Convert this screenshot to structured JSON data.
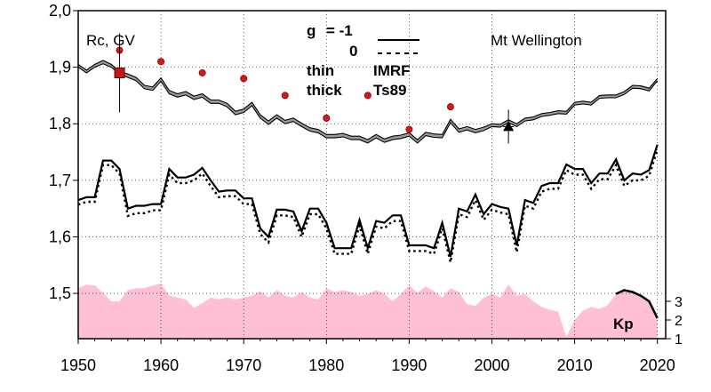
{
  "chart_data": {
    "type": "line",
    "ylabel": "Rc, GV",
    "station": "Mt Wellington",
    "legend": {
      "g_label": "g",
      "g_minus1": "= -1",
      "g_zero": "0",
      "thin_label": "thin",
      "thick_label": "thick",
      "model_thin": "IMRF",
      "model_thick": "Ts89"
    },
    "x_ticks": [
      "1950",
      "1960",
      "1970",
      "1980",
      "1990",
      "2000",
      "2010",
      "2020"
    ],
    "y_ticks": [
      "1,5",
      "1,6",
      "1,7",
      "1,8",
      "1,9",
      "2,0"
    ],
    "kp_label": "Kp",
    "kp_ticks": [
      "1",
      "2",
      "3"
    ],
    "xlim": [
      1950,
      2021
    ],
    "ylim": [
      1.42,
      2.0
    ],
    "kp_lim": [
      1,
      3.4
    ],
    "series": [
      {
        "name": "IMRF g=-1",
        "style": "thin-solid",
        "x": [
          1950,
          1951,
          1952,
          1953,
          1954,
          1955,
          1956,
          1957,
          1958,
          1959,
          1960,
          1961,
          1962,
          1963,
          1964,
          1965,
          1966,
          1967,
          1968,
          1969,
          1970,
          1971,
          1972,
          1973,
          1974,
          1975,
          1976,
          1977,
          1978,
          1979,
          1980,
          1981,
          1982,
          1983,
          1984,
          1985,
          1986,
          1987,
          1988,
          1989,
          1990,
          1991,
          1992,
          1993,
          1994,
          1995,
          1996,
          1997,
          1998,
          1999,
          2000,
          2001,
          2002,
          2003,
          2004,
          2005,
          2006,
          2007,
          2008,
          2009,
          2010,
          2011,
          2012,
          2013,
          2014,
          2015,
          2016,
          2017,
          2018,
          2019,
          2020
        ],
        "values": [
          1.905,
          1.895,
          1.905,
          1.912,
          1.905,
          1.893,
          1.888,
          1.882,
          1.868,
          1.865,
          1.881,
          1.859,
          1.853,
          1.857,
          1.849,
          1.853,
          1.842,
          1.842,
          1.836,
          1.822,
          1.826,
          1.838,
          1.816,
          1.805,
          1.816,
          1.806,
          1.81,
          1.801,
          1.793,
          1.79,
          1.781,
          1.781,
          1.783,
          1.778,
          1.778,
          1.772,
          1.781,
          1.773,
          1.778,
          1.78,
          1.784,
          1.772,
          1.785,
          1.782,
          1.781,
          1.808,
          1.791,
          1.795,
          1.79,
          1.794,
          1.8,
          1.799,
          1.807,
          1.8,
          1.81,
          1.812,
          1.818,
          1.82,
          1.823,
          1.822,
          1.838,
          1.84,
          1.838,
          1.85,
          1.851,
          1.851,
          1.857,
          1.868,
          1.867,
          1.863,
          1.88
        ]
      },
      {
        "name": "IMRF g=0",
        "style": "thin-solid",
        "x": [
          1950,
          1951,
          1952,
          1953,
          1954,
          1955,
          1956,
          1957,
          1958,
          1959,
          1960,
          1961,
          1962,
          1963,
          1964,
          1965,
          1966,
          1967,
          1968,
          1969,
          1970,
          1971,
          1972,
          1973,
          1974,
          1975,
          1976,
          1977,
          1978,
          1979,
          1980,
          1981,
          1982,
          1983,
          1984,
          1985,
          1986,
          1987,
          1988,
          1989,
          1990,
          1991,
          1992,
          1993,
          1994,
          1995,
          1996,
          1997,
          1998,
          1999,
          2000,
          2001,
          2002,
          2003,
          2004,
          2005,
          2006,
          2007,
          2008,
          2009,
          2010,
          2011,
          2012,
          2013,
          2014,
          2015,
          2016,
          2017,
          2018,
          2019,
          2020
        ],
        "values": [
          1.9,
          1.89,
          1.9,
          1.906,
          1.9,
          1.888,
          1.882,
          1.876,
          1.862,
          1.859,
          1.875,
          1.853,
          1.847,
          1.851,
          1.843,
          1.847,
          1.836,
          1.836,
          1.83,
          1.816,
          1.82,
          1.832,
          1.81,
          1.799,
          1.81,
          1.8,
          1.804,
          1.795,
          1.787,
          1.784,
          1.775,
          1.775,
          1.777,
          1.772,
          1.772,
          1.766,
          1.775,
          1.767,
          1.772,
          1.774,
          1.778,
          1.766,
          1.779,
          1.776,
          1.775,
          1.802,
          1.785,
          1.789,
          1.784,
          1.788,
          1.795,
          1.794,
          1.802,
          1.795,
          1.805,
          1.807,
          1.813,
          1.815,
          1.818,
          1.817,
          1.833,
          1.835,
          1.833,
          1.845,
          1.846,
          1.846,
          1.852,
          1.863,
          1.862,
          1.858,
          1.876
        ]
      },
      {
        "name": "Ts89 g=-1",
        "style": "thick-solid",
        "x": [
          1950,
          1951,
          1952,
          1953,
          1954,
          1955,
          1956,
          1957,
          1958,
          1959,
          1960,
          1961,
          1962,
          1963,
          1964,
          1965,
          1966,
          1967,
          1968,
          1969,
          1970,
          1971,
          1972,
          1973,
          1974,
          1975,
          1976,
          1977,
          1978,
          1979,
          1980,
          1981,
          1982,
          1983,
          1984,
          1985,
          1986,
          1987,
          1988,
          1989,
          1990,
          1991,
          1992,
          1993,
          1994,
          1995,
          1996,
          1997,
          1998,
          1999,
          2000,
          2001,
          2002,
          2003,
          2004,
          2005,
          2006,
          2007,
          2008,
          2009,
          2010,
          2011,
          2012,
          2013,
          2014,
          2015,
          2016,
          2017,
          2018,
          2019,
          2020
        ],
        "values": [
          1.665,
          1.67,
          1.67,
          1.735,
          1.735,
          1.72,
          1.65,
          1.655,
          1.655,
          1.658,
          1.658,
          1.72,
          1.705,
          1.705,
          1.71,
          1.722,
          1.7,
          1.68,
          1.682,
          1.682,
          1.668,
          1.668,
          1.615,
          1.6,
          1.648,
          1.648,
          1.645,
          1.61,
          1.65,
          1.65,
          1.625,
          1.58,
          1.58,
          1.58,
          1.63,
          1.58,
          1.628,
          1.625,
          1.638,
          1.638,
          1.585,
          1.585,
          1.585,
          1.58,
          1.625,
          1.565,
          1.65,
          1.645,
          1.675,
          1.64,
          1.658,
          1.653,
          1.65,
          1.585,
          1.665,
          1.66,
          1.69,
          1.695,
          1.695,
          1.728,
          1.72,
          1.72,
          1.695,
          1.712,
          1.712,
          1.737,
          1.7,
          1.712,
          1.71,
          1.718,
          1.763
        ]
      },
      {
        "name": "Ts89 g=0",
        "style": "thick-dotted",
        "x": [
          1950,
          1951,
          1952,
          1953,
          1954,
          1955,
          1956,
          1957,
          1958,
          1959,
          1960,
          1961,
          1962,
          1963,
          1964,
          1965,
          1966,
          1967,
          1968,
          1969,
          1970,
          1971,
          1972,
          1973,
          1974,
          1975,
          1976,
          1977,
          1978,
          1979,
          1980,
          1981,
          1982,
          1983,
          1984,
          1985,
          1986,
          1987,
          1988,
          1989,
          1990,
          1991,
          1992,
          1993,
          1994,
          1995,
          1996,
          1997,
          1998,
          1999,
          2000,
          2001,
          2002,
          2003,
          2004,
          2005,
          2006,
          2007,
          2008,
          2009,
          2010,
          2011,
          2012,
          2013,
          2014,
          2015,
          2016,
          2017,
          2018,
          2019,
          2020
        ],
        "values": [
          1.657,
          1.662,
          1.662,
          1.727,
          1.727,
          1.712,
          1.637,
          1.642,
          1.642,
          1.647,
          1.647,
          1.71,
          1.695,
          1.695,
          1.7,
          1.712,
          1.69,
          1.67,
          1.672,
          1.672,
          1.658,
          1.658,
          1.605,
          1.59,
          1.638,
          1.638,
          1.635,
          1.6,
          1.64,
          1.64,
          1.615,
          1.57,
          1.57,
          1.57,
          1.62,
          1.57,
          1.618,
          1.615,
          1.628,
          1.628,
          1.575,
          1.575,
          1.575,
          1.57,
          1.615,
          1.555,
          1.64,
          1.635,
          1.665,
          1.63,
          1.648,
          1.643,
          1.64,
          1.573,
          1.655,
          1.65,
          1.68,
          1.685,
          1.685,
          1.718,
          1.71,
          1.71,
          1.685,
          1.702,
          1.702,
          1.727,
          1.69,
          1.7,
          1.7,
          1.708,
          1.755
        ]
      },
      {
        "name": "Rc observed",
        "style": "red-dots",
        "x": [
          1955,
          1960,
          1965,
          1970,
          1975,
          1980,
          1985,
          1990,
          1995
        ],
        "values": [
          1.93,
          1.91,
          1.89,
          1.88,
          1.85,
          1.81,
          1.85,
          1.79,
          1.83
        ]
      },
      {
        "name": "Kp",
        "style": "pink-area",
        "x": [
          1950,
          1951,
          1952,
          1953,
          1954,
          1955,
          1956,
          1957,
          1958,
          1959,
          1960,
          1961,
          1962,
          1963,
          1964,
          1965,
          1966,
          1967,
          1968,
          1969,
          1970,
          1971,
          1972,
          1973,
          1974,
          1975,
          1976,
          1977,
          1978,
          1979,
          1980,
          1981,
          1982,
          1983,
          1984,
          1985,
          1986,
          1987,
          1988,
          1989,
          1990,
          1991,
          1992,
          1993,
          1994,
          1995,
          1996,
          1997,
          1998,
          1999,
          2000,
          2001,
          2002,
          2003,
          2004,
          2005,
          2006,
          2007,
          2008,
          2009,
          2010,
          2011,
          2012,
          2013,
          2014,
          2015,
          2016,
          2017,
          2018,
          2019,
          2020
        ],
        "values": [
          3.7,
          3.9,
          3.85,
          3.45,
          3.0,
          3.0,
          3.6,
          3.7,
          3.7,
          3.85,
          3.95,
          3.3,
          3.2,
          3.1,
          2.65,
          2.9,
          3.2,
          3.1,
          3.2,
          3.1,
          3.2,
          3.3,
          3.55,
          3.2,
          3.6,
          3.3,
          3.2,
          3.5,
          3.2,
          3.1,
          3.7,
          3.5,
          3.6,
          3.5,
          3.3,
          3.4,
          3.6,
          3.4,
          3.0,
          3.4,
          3.85,
          3.45,
          3.8,
          3.55,
          3.2,
          3.7,
          3.5,
          2.85,
          2.75,
          3.2,
          3.4,
          3.2,
          3.9,
          3.3,
          3.4,
          3.0,
          2.7,
          2.55,
          2.45,
          1.1,
          2.0,
          2.5,
          2.7,
          2.6,
          2.8,
          3.4,
          3.6,
          3.5,
          3.3,
          3.0,
          2.1
        ]
      }
    ],
    "markers": [
      {
        "name": "square",
        "x": 1955,
        "y": 1.89,
        "err": 0.07
      },
      {
        "name": "triangle",
        "x": 2002,
        "y": 1.795,
        "err": 0.03
      }
    ]
  }
}
